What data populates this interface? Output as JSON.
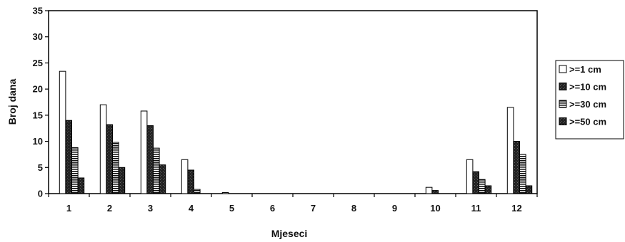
{
  "chart_data": {
    "type": "bar",
    "title": "",
    "xlabel": "Mjeseci",
    "ylabel": "Broj dana",
    "ylim": [
      0,
      35
    ],
    "yticks": [
      0,
      5,
      10,
      15,
      20,
      25,
      30,
      35
    ],
    "grid": false,
    "legend_position": "right",
    "categories": [
      "1",
      "2",
      "3",
      "4",
      "5",
      "6",
      "7",
      "8",
      "9",
      "10",
      "11",
      "12"
    ],
    "series": [
      {
        "name": ">=1 cm",
        "pattern": "white",
        "values": [
          23.4,
          17.0,
          15.8,
          6.5,
          0.2,
          0,
          0,
          0,
          0,
          1.2,
          6.5,
          16.5
        ]
      },
      {
        "name": ">=10 cm",
        "pattern": "dark",
        "values": [
          14.0,
          13.2,
          13.0,
          4.5,
          0,
          0,
          0,
          0,
          0,
          0.6,
          4.2,
          10.0
        ]
      },
      {
        "name": ">=30 cm",
        "pattern": "horizontal",
        "values": [
          8.8,
          9.8,
          8.7,
          0.8,
          0,
          0,
          0,
          0,
          0,
          0,
          2.7,
          7.5
        ]
      },
      {
        "name": ">=50 cm",
        "pattern": "dark",
        "values": [
          3.0,
          5.0,
          5.5,
          0,
          0,
          0,
          0,
          0,
          0,
          0,
          1.5,
          1.5
        ]
      }
    ]
  }
}
